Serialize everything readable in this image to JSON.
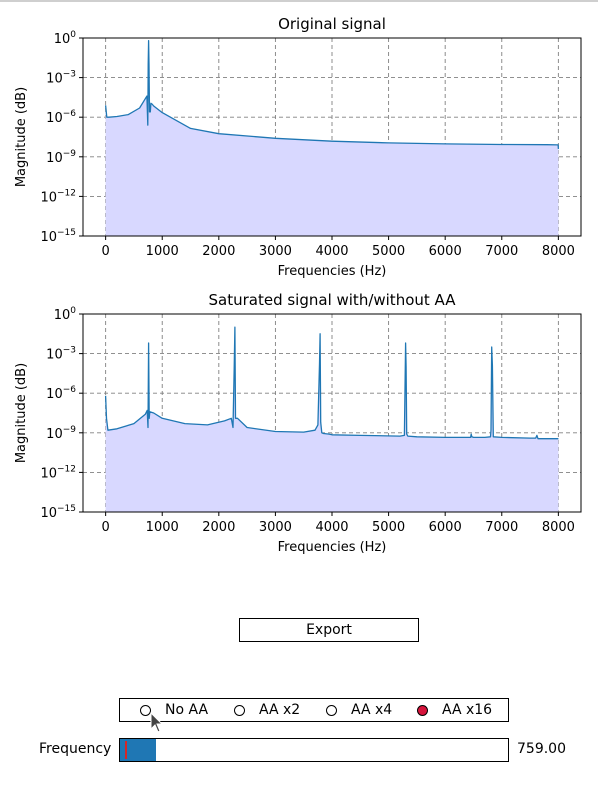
{
  "chart_data": [
    {
      "type": "area",
      "title": "Original signal",
      "xlabel": "Frequencies (Hz)",
      "ylabel": "Magnitude (dB)",
      "xlim": [
        -400,
        8400
      ],
      "ylim_exponents": [
        -15,
        0
      ],
      "y_scale": "log",
      "grid": true,
      "line_color": "#1f77b4",
      "fill_color": "#d8d8ff",
      "x_ticks": [
        "0",
        "1000",
        "2000",
        "3000",
        "4000",
        "5000",
        "6000",
        "7000",
        "8000"
      ],
      "y_tick_labels": [
        {
          "base": "10",
          "exp": "0"
        },
        {
          "base": "10",
          "exp": "−3"
        },
        {
          "base": "10",
          "exp": "−6"
        },
        {
          "base": "10",
          "exp": "−9"
        },
        {
          "base": "10",
          "exp": "−12"
        },
        {
          "base": "10",
          "exp": "−15"
        }
      ],
      "series": [
        {
          "x": [
            0,
            20,
            60,
            200,
            400,
            600,
            700,
            730,
            745,
            752,
            759,
            766,
            775,
            790,
            800,
            820,
            850,
            1000,
            1500,
            2000,
            3000,
            4000,
            5000,
            6000,
            7000,
            7800,
            7995,
            8000
          ],
          "log10_y": [
            -5.1,
            -6,
            -6,
            -5.95,
            -5.8,
            -5.3,
            -4.6,
            -4.4,
            -6.6,
            -2,
            -0.2,
            -2,
            -5.6,
            -5.6,
            -4.95,
            -5.0,
            -5.15,
            -5.65,
            -6.85,
            -7.25,
            -7.6,
            -7.82,
            -7.95,
            -8.02,
            -8.07,
            -8.08,
            -8.1,
            -8.4
          ]
        }
      ]
    },
    {
      "type": "area",
      "title": "Saturated signal with/without AA",
      "xlabel": "Frequencies (Hz)",
      "ylabel": "Magnitude (dB)",
      "xlim": [
        -400,
        8400
      ],
      "ylim_exponents": [
        -15,
        0
      ],
      "y_scale": "log",
      "grid": true,
      "line_color": "#1f77b4",
      "fill_color": "#d8d8ff",
      "x_ticks": [
        "0",
        "1000",
        "2000",
        "3000",
        "4000",
        "5000",
        "6000",
        "7000",
        "8000"
      ],
      "y_tick_labels": [
        {
          "base": "10",
          "exp": "0"
        },
        {
          "base": "10",
          "exp": "−3"
        },
        {
          "base": "10",
          "exp": "−6"
        },
        {
          "base": "10",
          "exp": "−9"
        },
        {
          "base": "10",
          "exp": "−12"
        },
        {
          "base": "10",
          "exp": "−15"
        }
      ],
      "series": [
        {
          "x": [
            0,
            15,
            40,
            200,
            500,
            700,
            735,
            748,
            759,
            770,
            780,
            850,
            1000,
            1400,
            1800,
            2100,
            2220,
            2250,
            2272,
            2285,
            2295,
            2330,
            2500,
            3000,
            3500,
            3700,
            3750,
            3780,
            3790,
            3800,
            3820,
            3850,
            3950,
            4000,
            4500,
            5200,
            5280,
            5300,
            5310,
            5320,
            5340,
            5500,
            6000,
            6450,
            6460,
            6470,
            6500,
            6700,
            6800,
            6810,
            6822,
            6835,
            6850,
            7000,
            7500,
            7600,
            7620,
            7640,
            8000
          ],
          "log10_y": [
            -6.2,
            -7.9,
            -8.8,
            -8.7,
            -8.3,
            -7.6,
            -7.3,
            -8.6,
            -2.2,
            -7.9,
            -7.4,
            -7.5,
            -7.9,
            -8.3,
            -8.4,
            -8.1,
            -7.9,
            -8.6,
            -4.1,
            -1.0,
            -7.9,
            -7.9,
            -8.6,
            -8.9,
            -8.95,
            -8.8,
            -8.4,
            -3.8,
            -1.5,
            -8.2,
            -9.0,
            -9.05,
            -9.1,
            -9.15,
            -9.2,
            -9.25,
            -9.2,
            -2.2,
            -4.0,
            -9.1,
            -9.25,
            -9.3,
            -9.35,
            -9.35,
            -9.1,
            -9.3,
            -9.35,
            -9.35,
            -9.3,
            -8.8,
            -2.5,
            -3.9,
            -9.3,
            -9.35,
            -9.4,
            -9.4,
            -9.2,
            -9.45,
            -9.45
          ]
        }
      ]
    }
  ],
  "controls": {
    "export_label": "Export",
    "aa_options": [
      "No AA",
      "AA x2",
      "AA x4",
      "AA x16"
    ],
    "aa_selected": "AA x16",
    "selected_color": "#d6143c",
    "slider_label": "Frequency",
    "slider_value": "759.00",
    "slider_fill_fraction": 0.092,
    "slider_marker_fraction": 0.012,
    "slider_fill_color": "#1f77b4",
    "slider_marker_color": "#d62728"
  }
}
